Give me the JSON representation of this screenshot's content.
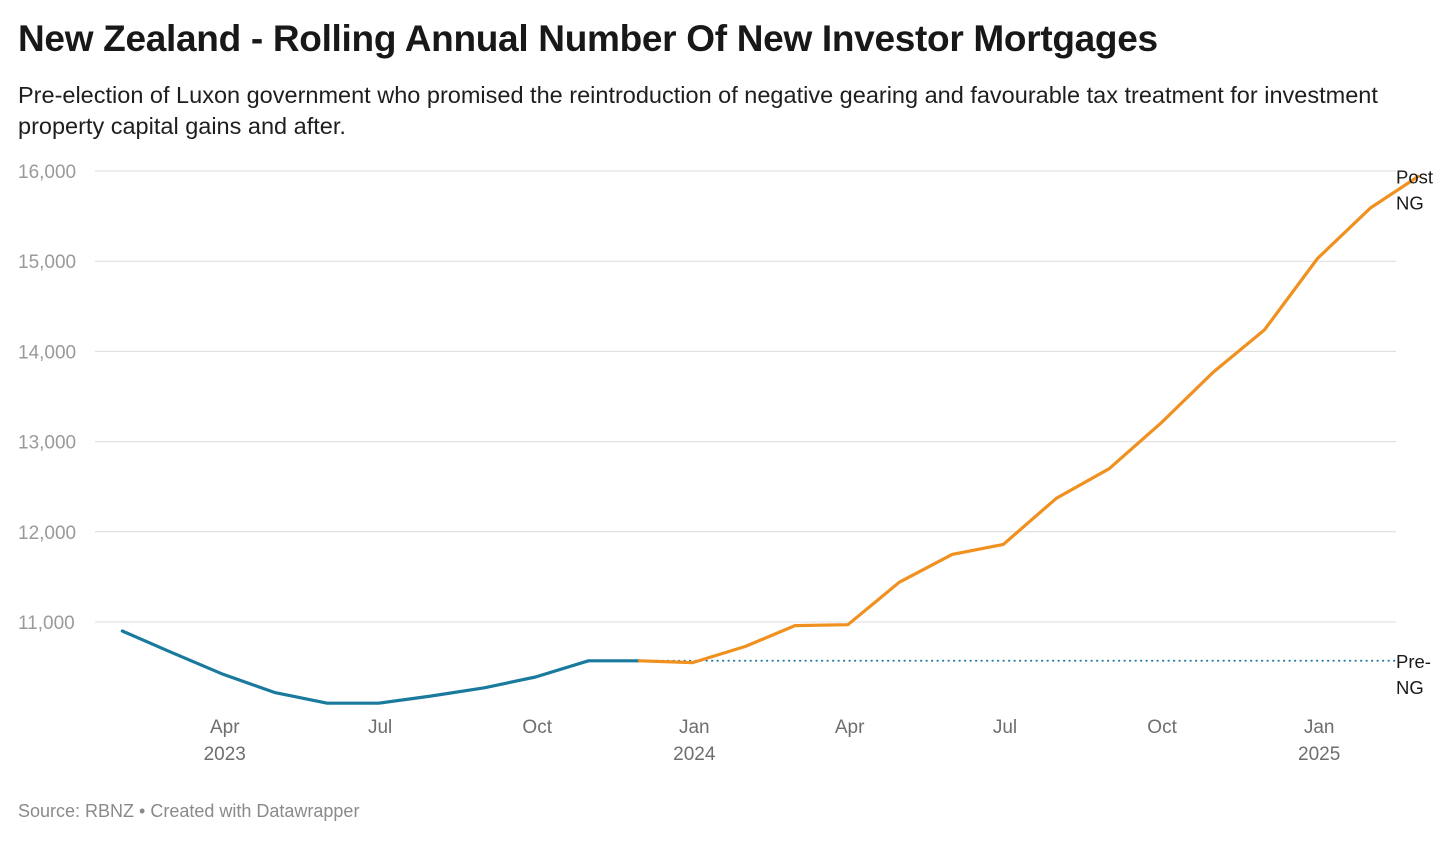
{
  "chart_data": {
    "type": "line",
    "title": "New Zealand - Rolling Annual Number Of New Investor Mortgages",
    "subtitle": "Pre-election of Luxon government who promised the reintroduction of negative gearing and favourable tax treatment for investment property capital gains and after.",
    "source": "Source: RBNZ • Created with Datawrapper",
    "ylim": [
      10000,
      16000
    ],
    "y_ticks": [
      11000,
      12000,
      13000,
      14000,
      15000,
      16000
    ],
    "y_tick_labels": [
      "11,000",
      "12,000",
      "13,000",
      "14,000",
      "15,000",
      "16,000"
    ],
    "x_range": [
      "2023-01-15",
      "2025-02-15"
    ],
    "x_ticks": [
      {
        "date": "2023-04-01",
        "label": "Apr",
        "year": "2023"
      },
      {
        "date": "2023-07-01",
        "label": "Jul",
        "year": ""
      },
      {
        "date": "2023-10-01",
        "label": "Oct",
        "year": ""
      },
      {
        "date": "2024-01-01",
        "label": "Jan",
        "year": "2024"
      },
      {
        "date": "2024-04-01",
        "label": "Apr",
        "year": ""
      },
      {
        "date": "2024-07-01",
        "label": "Jul",
        "year": ""
      },
      {
        "date": "2024-10-01",
        "label": "Oct",
        "year": ""
      },
      {
        "date": "2025-01-01",
        "label": "Jan",
        "year": "2025"
      }
    ],
    "grid": true,
    "series": [
      {
        "name": "Pre-NG",
        "label_lines": [
          "Pre-",
          "NG"
        ],
        "color": "#1a7a9e",
        "x": [
          "2023-01-31",
          "2023-02-28",
          "2023-03-31",
          "2023-04-30",
          "2023-05-31",
          "2023-06-30",
          "2023-07-31",
          "2023-08-31",
          "2023-09-30",
          "2023-10-31",
          "2023-11-30"
        ],
        "y": [
          10900,
          10670,
          10420,
          10220,
          10100,
          10100,
          10180,
          10270,
          10390,
          10570,
          10570
        ]
      },
      {
        "name": "Post NG",
        "label_lines": [
          "Post",
          "NG"
        ],
        "color": "#f0901e",
        "x": [
          "2023-11-30",
          "2023-12-31",
          "2024-01-31",
          "2024-02-29",
          "2024-03-31",
          "2024-04-30",
          "2024-05-31",
          "2024-06-30",
          "2024-07-31",
          "2024-08-31",
          "2024-09-30",
          "2024-10-31",
          "2024-11-30",
          "2024-12-31",
          "2025-01-31",
          "2025-02-28"
        ],
        "y": [
          10570,
          10550,
          10730,
          10960,
          10970,
          11440,
          11750,
          11860,
          12370,
          12700,
          13200,
          13770,
          14240,
          15030,
          15590,
          15940
        ]
      }
    ],
    "reference_line": {
      "y": 10570,
      "from": "2023-11-30",
      "color": "#1a7a9e",
      "style": "dotted"
    }
  }
}
